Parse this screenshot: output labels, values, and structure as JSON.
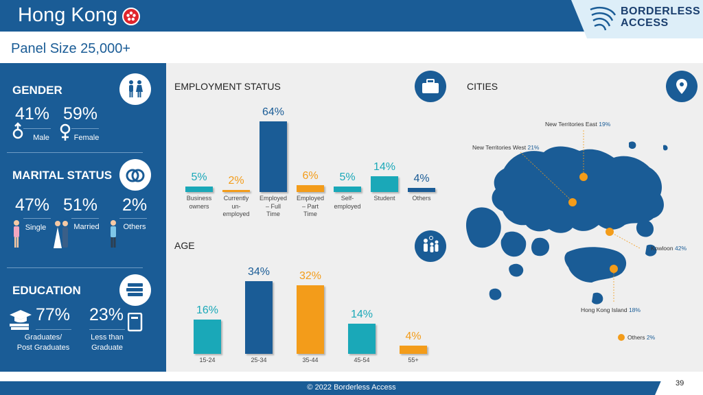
{
  "header": {
    "title": "Hong Kong",
    "flag_icon": "hong-kong-flag-icon",
    "logo_line1": "BORDERLESS",
    "logo_line2": "ACCESS"
  },
  "panel_size": "Panel Size 25,000+",
  "gender": {
    "heading": "GENDER",
    "male_pct": "41%",
    "female_pct": "59%",
    "male_label": "Male",
    "female_label": "Female"
  },
  "marital": {
    "heading": "MARITAL STATUS",
    "single_pct": "47%",
    "married_pct": "51%",
    "others_pct": "2%",
    "single_label": "Single",
    "married_label": "Married",
    "others_label": "Others"
  },
  "education": {
    "heading": "EDUCATION",
    "grad_pct": "77%",
    "less_pct": "23%",
    "grad_label_1": "Graduates/",
    "grad_label_2": "Post Graduates",
    "less_label_1": "Less than",
    "less_label_2": "Graduate"
  },
  "employment": {
    "heading": "EMPLOYMENT STATUS"
  },
  "age": {
    "heading": "AGE"
  },
  "cities": {
    "heading": "CITIES",
    "items": [
      {
        "name": "New Territories East",
        "pct": "19%"
      },
      {
        "name": "New Territories West",
        "pct": "21%"
      },
      {
        "name": "Kowloon",
        "pct": "42%"
      },
      {
        "name": "Hong Kong Island",
        "pct": "18%"
      },
      {
        "name": "Others",
        "pct": "2%"
      }
    ]
  },
  "footer": {
    "copyright": "© 2022 Borderless Access",
    "page": "39"
  },
  "colors": {
    "navy": "#1a5c96",
    "teal": "#1aa8b8",
    "orange": "#f39c1a"
  },
  "chart_data": [
    {
      "type": "bar",
      "title": "EMPLOYMENT STATUS",
      "categories": [
        "Business owners",
        "Currently un-employed",
        "Employed – Full Time",
        "Employed – Part Time",
        "Self-employed",
        "Student",
        "Others"
      ],
      "cat_lines": [
        [
          "Business",
          "owners"
        ],
        [
          "Currently",
          "un-",
          "employed"
        ],
        [
          "Employed",
          "– Full",
          "Time"
        ],
        [
          "Employed",
          "– Part",
          "Time"
        ],
        [
          "Self-",
          "employed"
        ],
        [
          "Student"
        ],
        [
          "Others"
        ]
      ],
      "values": [
        5,
        2,
        64,
        6,
        5,
        14,
        4
      ],
      "labels": [
        "5%",
        "2%",
        "64%",
        "6%",
        "5%",
        "14%",
        "4%"
      ],
      "colors": [
        "#1aa8b8",
        "#f39c1a",
        "#1a5c96",
        "#f39c1a",
        "#1aa8b8",
        "#1aa8b8",
        "#1a5c96"
      ]
    },
    {
      "type": "bar",
      "title": "AGE",
      "categories": [
        "15-24",
        "25-34",
        "35-44",
        "45-54",
        "55+"
      ],
      "values": [
        16,
        34,
        32,
        14,
        4
      ],
      "labels": [
        "16%",
        "34%",
        "32%",
        "14%",
        "4%"
      ],
      "colors": [
        "#1aa8b8",
        "#1a5c96",
        "#f39c1a",
        "#1aa8b8",
        "#f39c1a"
      ]
    }
  ]
}
